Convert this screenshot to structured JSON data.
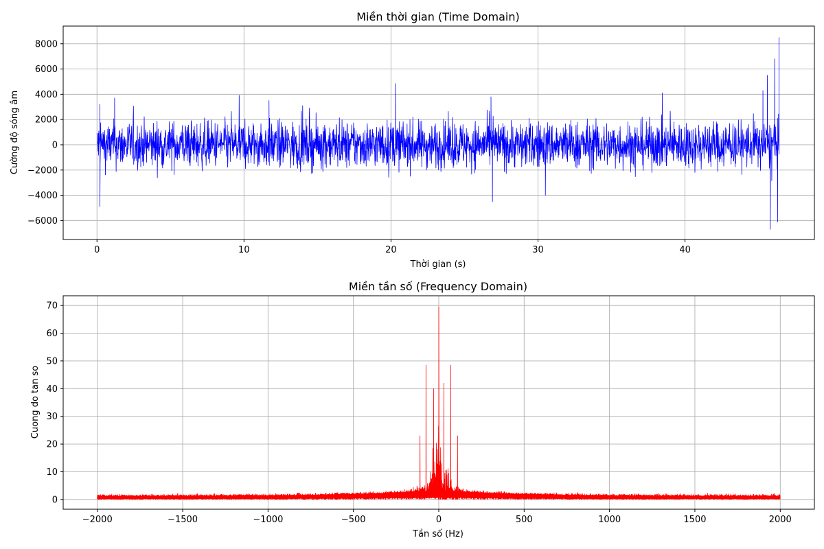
{
  "chart_data": [
    {
      "type": "line",
      "title": "Miền thời gian (Time Domain)",
      "xlabel": "Thời gian (s)",
      "ylabel": "Cường độ sóng âm",
      "xlim": [
        -2.3,
        48.8
      ],
      "ylim": [
        -7500,
        9400
      ],
      "xticks": [
        0,
        10,
        20,
        30,
        40
      ],
      "yticks": [
        -6000,
        -4000,
        -2000,
        0,
        2000,
        4000,
        6000,
        8000
      ],
      "grid": true,
      "series": [
        {
          "color": "#0000ff",
          "x_range": [
            0,
            46.4
          ],
          "typical_amplitude": 1800,
          "peaks": [
            {
              "x": 0.2,
              "y": 3200
            },
            {
              "x": 0.2,
              "y": -4900
            },
            {
              "x": 1.2,
              "y": 3700
            },
            {
              "x": 11.7,
              "y": 3500
            },
            {
              "x": 20.3,
              "y": 4850
            },
            {
              "x": 26.8,
              "y": 3800
            },
            {
              "x": 26.9,
              "y": -4500
            },
            {
              "x": 30.5,
              "y": -4000
            },
            {
              "x": 45.3,
              "y": 4300
            },
            {
              "x": 45.6,
              "y": 5500
            },
            {
              "x": 45.8,
              "y": -6700
            },
            {
              "x": 46.1,
              "y": 6800
            },
            {
              "x": 46.3,
              "y": -6100
            },
            {
              "x": 46.4,
              "y": 8500
            }
          ]
        }
      ]
    },
    {
      "type": "line",
      "title": "Miền tần số (Frequency Domain)",
      "xlabel": "Tần số (Hz)",
      "ylabel": "Cuong do tan so",
      "xlim": [
        -2200,
        2200
      ],
      "ylim": [
        -3.5,
        73.5
      ],
      "xticks": [
        -2000,
        -1500,
        -1000,
        -500,
        0,
        500,
        1000,
        1500,
        2000
      ],
      "yticks": [
        0,
        10,
        20,
        30,
        40,
        50,
        60,
        70
      ],
      "grid": true,
      "series": [
        {
          "color": "#ff0000",
          "x_range": [
            -2000,
            2000
          ],
          "noise_floor": 1.2,
          "peaks": [
            {
              "x": 0,
              "y": 69.5
            },
            {
              "x": -75,
              "y": 48.5
            },
            {
              "x": 70,
              "y": 48.5
            },
            {
              "x": -110,
              "y": 23
            },
            {
              "x": 110,
              "y": 23
            },
            {
              "x": -30,
              "y": 40
            },
            {
              "x": 30,
              "y": 42
            }
          ]
        }
      ]
    }
  ]
}
